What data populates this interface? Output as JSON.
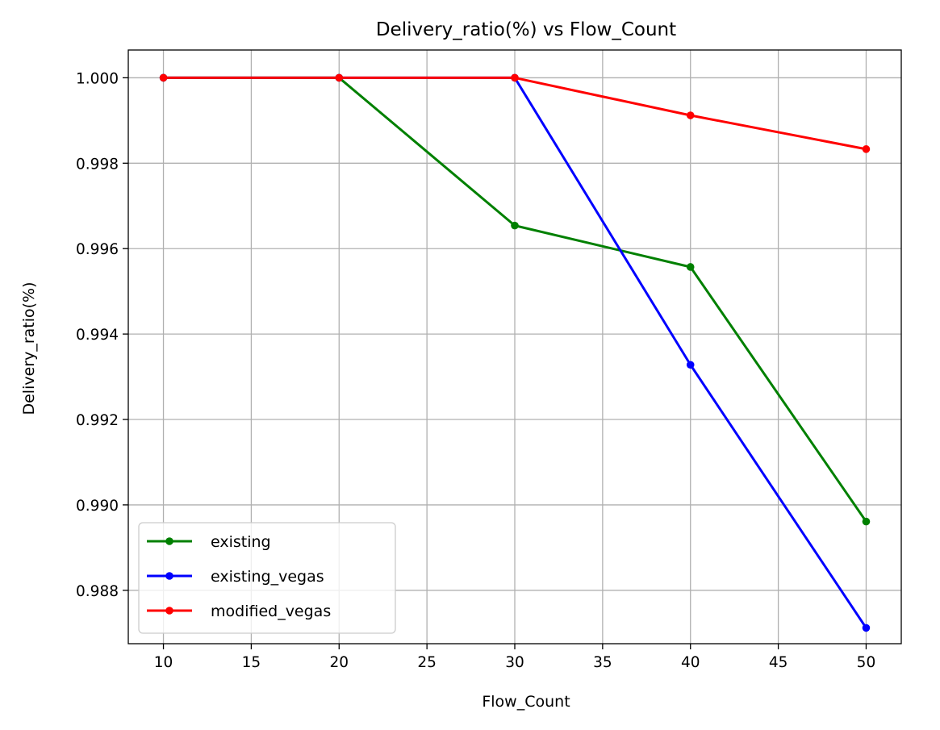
{
  "chart_data": {
    "type": "line",
    "title": "Delivery_ratio(%) vs Flow_Count",
    "xlabel": "Flow_Count",
    "ylabel": "Delivery_ratio(%)",
    "x": [
      10,
      20,
      30,
      40,
      50
    ],
    "xlim": [
      8,
      52
    ],
    "ylim": [
      0.98675,
      1.00065
    ],
    "xticks": [
      10,
      15,
      20,
      25,
      30,
      35,
      40,
      45,
      50
    ],
    "yticks": [
      0.988,
      0.99,
      0.992,
      0.994,
      0.996,
      0.998,
      1.0
    ],
    "ytick_labels": [
      "0.988",
      "0.990",
      "0.992",
      "0.994",
      "0.996",
      "0.998",
      "1.000"
    ],
    "grid": true,
    "legend_position": "lower-left",
    "series": [
      {
        "name": "existing",
        "color": "#008000",
        "values": [
          1.0,
          1.0,
          0.99654,
          0.99557,
          0.98961
        ]
      },
      {
        "name": "existing_vegas",
        "color": "#0000ff",
        "values": [
          1.0,
          1.0,
          1.0,
          0.99328,
          0.98712
        ]
      },
      {
        "name": "modified_vegas",
        "color": "#ff0000",
        "values": [
          1.0,
          1.0,
          1.0,
          0.99912,
          0.99833
        ]
      }
    ]
  }
}
